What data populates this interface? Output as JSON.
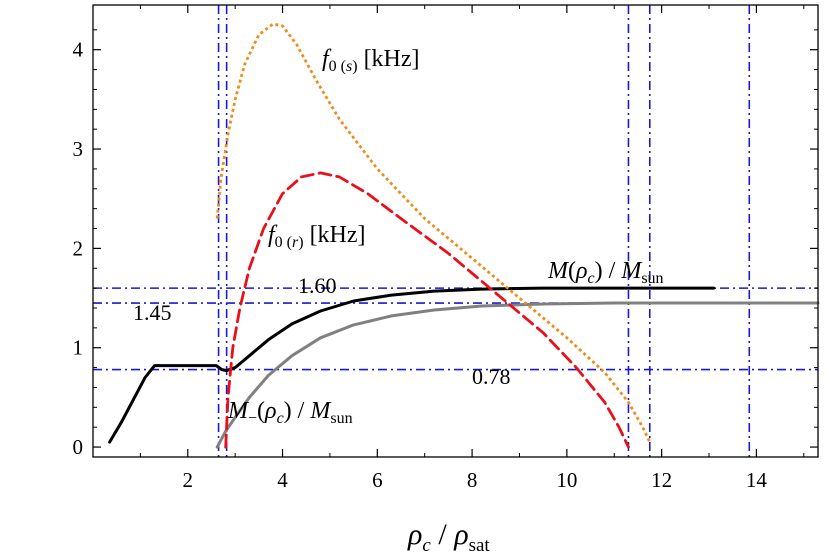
{
  "chart_data": {
    "type": "line",
    "xlabel": "ρ_c/ρ_sat",
    "ylabel": "",
    "xlim": [
      0,
      15.3
    ],
    "ylim": [
      -0.1,
      4.45
    ],
    "xticks": [
      2,
      4,
      6,
      8,
      10,
      12,
      14
    ],
    "yticks": [
      0,
      1,
      2,
      3,
      4
    ],
    "grid": false,
    "series": [
      {
        "name": "M(ρ_c)/M_sun",
        "color": "#000000",
        "style": "solid",
        "x": [
          0.35,
          0.6,
          0.9,
          1.1,
          1.3,
          2.6,
          2.72,
          2.82,
          3.0,
          3.3,
          3.7,
          4.2,
          4.8,
          5.5,
          6.3,
          7.2,
          8.2,
          9.5,
          11,
          12.5,
          13.1
        ],
        "y": [
          0.05,
          0.25,
          0.52,
          0.7,
          0.82,
          0.82,
          0.78,
          0.77,
          0.8,
          0.92,
          1.08,
          1.24,
          1.37,
          1.47,
          1.53,
          1.57,
          1.59,
          1.6,
          1.6,
          1.6,
          1.6
        ]
      },
      {
        "name": "M_−(ρ_c)/M_sun",
        "color": "#808080",
        "style": "solid",
        "x": [
          2.62,
          2.8,
          3.0,
          3.3,
          3.7,
          4.2,
          4.8,
          5.5,
          6.3,
          7.2,
          8.2,
          9.5,
          11,
          12.5,
          14,
          15.3
        ],
        "y": [
          0.0,
          0.16,
          0.3,
          0.5,
          0.72,
          0.92,
          1.1,
          1.23,
          1.32,
          1.38,
          1.42,
          1.44,
          1.45,
          1.45,
          1.45,
          1.45
        ]
      },
      {
        "name": "f_0(r)[kHz]",
        "color": "#e8101a",
        "style": "dashed",
        "x": [
          2.8,
          2.85,
          2.95,
          3.1,
          3.3,
          3.6,
          4.0,
          4.4,
          4.8,
          5.2,
          5.8,
          6.5,
          7.5,
          8.5,
          9.5,
          10.2,
          10.8,
          11.1,
          11.25,
          11.3
        ],
        "y": [
          0.0,
          0.5,
          1.0,
          1.4,
          1.8,
          2.2,
          2.55,
          2.72,
          2.76,
          2.72,
          2.55,
          2.3,
          1.95,
          1.55,
          1.15,
          0.8,
          0.45,
          0.2,
          0.05,
          0.0
        ]
      },
      {
        "name": "f_0(s)[kHz]",
        "color": "#f08c1e",
        "style": "dotted",
        "x": [
          2.62,
          2.7,
          2.85,
          3.0,
          3.2,
          3.5,
          3.8,
          4.0,
          4.3,
          4.7,
          5.2,
          6.0,
          7.0,
          8.0,
          9.0,
          10.0,
          10.8,
          11.3,
          11.6,
          11.75
        ],
        "y": [
          2.3,
          2.7,
          3.15,
          3.5,
          3.85,
          4.15,
          4.26,
          4.24,
          4.05,
          3.7,
          3.3,
          2.8,
          2.3,
          1.9,
          1.5,
          1.1,
          0.75,
          0.45,
          0.2,
          0.05
        ]
      }
    ],
    "reference_lines": {
      "color": "#1a1ad0",
      "style": "dash-dot",
      "horizontal": [
        1.6,
        1.45,
        0.78
      ],
      "vertical": [
        2.65,
        2.82,
        11.3,
        11.75,
        13.85
      ]
    },
    "annotations": {
      "fs_main": "f",
      "fs_sub": "0 (",
      "fs_sub_it": "s",
      "fs_sub_end": ")",
      "fs_unit": " [kHz]",
      "fr_main": "f",
      "fr_sub": "0 (",
      "fr_sub_it": "r",
      "fr_sub_end": ")",
      "fr_unit": " [kHz]",
      "m_main": "M",
      "m_open": "(",
      "m_rho": "ρ",
      "m_rho_sub": "c",
      "m_close": ")",
      "m_slash": " / ",
      "m_den": "M",
      "m_den_sub": "sun",
      "mm_main": "M",
      "mm_minus": "−",
      "mm_open": "(",
      "mm_rho": "ρ",
      "mm_rho_sub": "c",
      "mm_close": ")",
      "mm_slash": " / ",
      "mm_den": "M",
      "mm_den_sub": "sun",
      "v160": "1.60",
      "v145": "1.45",
      "v078": "0.78",
      "xl_rho1": "ρ",
      "xl_sub1": "c",
      "xl_slash": " / ",
      "xl_rho2": "ρ",
      "xl_sub2": "sat"
    }
  }
}
